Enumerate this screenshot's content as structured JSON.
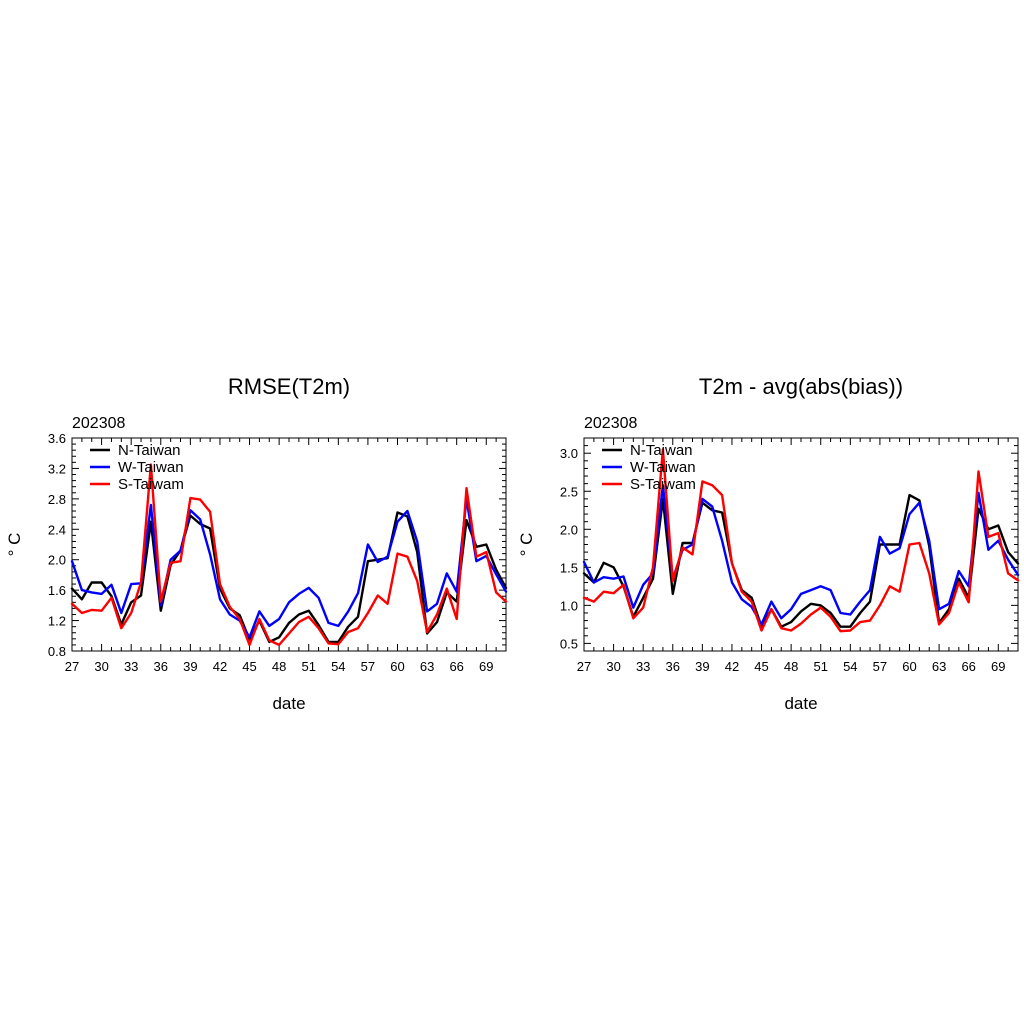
{
  "chart_data": [
    {
      "type": "line",
      "title": "RMSE(T2m)",
      "subtitle": "202308",
      "xlabel": "date",
      "ylabel": "° C",
      "xlim": [
        27,
        71
      ],
      "ylim": [
        0.8,
        3.6
      ],
      "xticks": [
        27,
        30,
        33,
        36,
        39,
        42,
        45,
        48,
        51,
        54,
        57,
        60,
        63,
        66,
        69
      ],
      "yticks": [
        "0.8",
        "1.2",
        "1.6",
        "2.0",
        "2.4",
        "2.8",
        "3.2",
        "3.6"
      ],
      "grid": false,
      "legend_position": "top-left",
      "x": [
        27,
        28,
        29,
        30,
        31,
        32,
        33,
        34,
        35,
        36,
        37,
        38,
        39,
        40,
        41,
        42,
        43,
        44,
        45,
        46,
        47,
        48,
        49,
        50,
        51,
        52,
        53,
        54,
        55,
        56,
        57,
        58,
        59,
        60,
        61,
        62,
        63,
        64,
        65,
        66,
        67,
        68,
        69,
        70,
        71
      ],
      "series": [
        {
          "name": "N-Taiwan",
          "color": "#000000",
          "values": [
            1.62,
            1.48,
            1.7,
            1.7,
            1.52,
            1.15,
            1.44,
            1.53,
            2.5,
            1.33,
            1.93,
            2.12,
            2.58,
            2.47,
            2.41,
            1.62,
            1.36,
            1.27,
            0.95,
            1.2,
            0.92,
            0.98,
            1.17,
            1.28,
            1.33,
            1.14,
            0.92,
            0.92,
            1.12,
            1.25,
            1.98,
            2.0,
            2.02,
            2.62,
            2.57,
            2.1,
            1.03,
            1.18,
            1.57,
            1.45,
            2.52,
            2.17,
            2.2,
            1.87,
            1.63
          ]
        },
        {
          "name": "W-Taiwan",
          "color": "#0000ff",
          "values": [
            1.98,
            1.6,
            1.57,
            1.55,
            1.67,
            1.3,
            1.68,
            1.69,
            2.72,
            1.4,
            2.0,
            2.12,
            2.65,
            2.53,
            2.07,
            1.48,
            1.28,
            1.2,
            0.98,
            1.32,
            1.13,
            1.22,
            1.44,
            1.55,
            1.63,
            1.5,
            1.17,
            1.13,
            1.32,
            1.56,
            2.2,
            1.97,
            2.04,
            2.5,
            2.64,
            2.24,
            1.32,
            1.42,
            1.82,
            1.58,
            2.8,
            1.98,
            2.05,
            1.81,
            1.58
          ]
        },
        {
          "name": "S-Taiwam",
          "color": "#ff0000",
          "values": [
            1.42,
            1.3,
            1.34,
            1.33,
            1.5,
            1.1,
            1.3,
            1.7,
            3.25,
            1.45,
            1.96,
            1.98,
            2.81,
            2.79,
            2.63,
            1.68,
            1.38,
            1.22,
            0.88,
            1.22,
            0.94,
            0.88,
            1.03,
            1.18,
            1.25,
            1.1,
            0.9,
            0.89,
            1.05,
            1.1,
            1.3,
            1.53,
            1.42,
            2.08,
            2.04,
            1.72,
            1.05,
            1.28,
            1.62,
            1.22,
            2.94,
            2.04,
            2.1,
            1.57,
            1.45
          ]
        }
      ]
    },
    {
      "type": "line",
      "title": "T2m - avg(abs(bias))",
      "subtitle": "202308",
      "xlabel": "date",
      "ylabel": "° C",
      "xlim": [
        27,
        71
      ],
      "ylim": [
        0.4,
        3.2
      ],
      "xticks": [
        27,
        30,
        33,
        36,
        39,
        42,
        45,
        48,
        51,
        54,
        57,
        60,
        63,
        66,
        69
      ],
      "yticks": [
        "0.5",
        "1.0",
        "1.5",
        "2.0",
        "2.5",
        "3.0"
      ],
      "grid": false,
      "legend_position": "top-left",
      "x": [
        27,
        28,
        29,
        30,
        31,
        32,
        33,
        34,
        35,
        36,
        37,
        38,
        39,
        40,
        41,
        42,
        43,
        44,
        45,
        46,
        47,
        48,
        49,
        50,
        51,
        52,
        53,
        54,
        55,
        56,
        57,
        58,
        59,
        60,
        61,
        62,
        63,
        64,
        65,
        66,
        67,
        68,
        69,
        70,
        71
      ],
      "series": [
        {
          "name": "N-Taiwan",
          "color": "#000000",
          "values": [
            1.42,
            1.3,
            1.56,
            1.5,
            1.25,
            0.85,
            1.1,
            1.35,
            2.4,
            1.15,
            1.82,
            1.82,
            2.35,
            2.25,
            2.22,
            1.55,
            1.2,
            1.1,
            0.72,
            0.95,
            0.72,
            0.78,
            0.92,
            1.02,
            1.0,
            0.9,
            0.72,
            0.72,
            0.9,
            1.05,
            1.8,
            1.8,
            1.8,
            2.45,
            2.38,
            1.78,
            0.77,
            0.95,
            1.35,
            1.1,
            2.27,
            2.0,
            2.05,
            1.7,
            1.55
          ]
        },
        {
          "name": "W-Taiwan",
          "color": "#0000ff",
          "values": [
            1.57,
            1.3,
            1.37,
            1.35,
            1.38,
            0.97,
            1.27,
            1.42,
            2.58,
            1.35,
            1.73,
            1.8,
            2.4,
            2.3,
            1.85,
            1.3,
            1.08,
            0.98,
            0.75,
            1.05,
            0.83,
            0.95,
            1.15,
            1.2,
            1.25,
            1.2,
            0.9,
            0.88,
            1.05,
            1.2,
            1.9,
            1.68,
            1.75,
            2.2,
            2.35,
            1.85,
            0.95,
            1.02,
            1.45,
            1.25,
            2.48,
            1.73,
            1.85,
            1.6,
            1.4
          ]
        },
        {
          "name": "S-Taiwam",
          "color": "#ff0000",
          "values": [
            1.1,
            1.05,
            1.18,
            1.16,
            1.27,
            0.83,
            0.97,
            1.5,
            3.05,
            1.32,
            1.76,
            1.67,
            2.63,
            2.58,
            2.45,
            1.55,
            1.18,
            1.05,
            0.67,
            0.95,
            0.7,
            0.67,
            0.76,
            0.88,
            0.97,
            0.85,
            0.66,
            0.67,
            0.78,
            0.8,
            1.0,
            1.25,
            1.18,
            1.8,
            1.82,
            1.42,
            0.75,
            0.9,
            1.3,
            1.04,
            2.76,
            1.9,
            1.95,
            1.42,
            1.33
          ]
        }
      ]
    }
  ]
}
